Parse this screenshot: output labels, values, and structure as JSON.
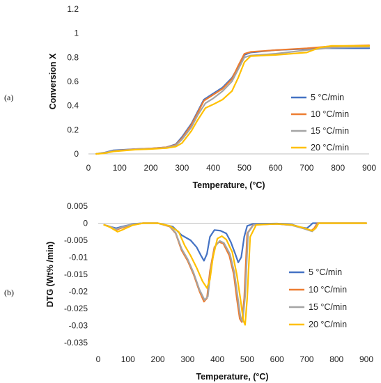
{
  "figure": {
    "panel_labels": [
      "(a)",
      "(b)"
    ]
  },
  "chart_data": [
    {
      "type": "line",
      "panel": "(a)",
      "xlabel": "Temperature, (°C)",
      "ylabel": "Conversion X",
      "xlim": [
        0,
        900
      ],
      "ylim": [
        0,
        1.2
      ],
      "x_ticks": [
        "0",
        "100",
        "200",
        "300",
        "400",
        "500",
        "600",
        "700",
        "800",
        "900"
      ],
      "y_ticks": [
        "0",
        "0.2",
        "0.4",
        "0.6",
        "0.8",
        "1",
        "1.2"
      ],
      "grid": false,
      "legend_position": "right",
      "series": [
        {
          "name": "5 °C/min",
          "color": "#4472c4",
          "points": [
            [
              25,
              0
            ],
            [
              50,
              0.01
            ],
            [
              80,
              0.03
            ],
            [
              150,
              0.04
            ],
            [
              200,
              0.045
            ],
            [
              250,
              0.055
            ],
            [
              280,
              0.08
            ],
            [
              300,
              0.14
            ],
            [
              330,
              0.25
            ],
            [
              350,
              0.35
            ],
            [
              370,
              0.45
            ],
            [
              400,
              0.5
            ],
            [
              430,
              0.55
            ],
            [
              460,
              0.63
            ],
            [
              480,
              0.72
            ],
            [
              500,
              0.82
            ],
            [
              520,
              0.84
            ],
            [
              600,
              0.86
            ],
            [
              700,
              0.87
            ],
            [
              760,
              0.875
            ],
            [
              900,
              0.875
            ]
          ]
        },
        {
          "name": "10 °C/min",
          "color": "#ed7d31",
          "points": [
            [
              25,
              0
            ],
            [
              50,
              0.008
            ],
            [
              80,
              0.025
            ],
            [
              150,
              0.04
            ],
            [
              200,
              0.045
            ],
            [
              250,
              0.055
            ],
            [
              280,
              0.075
            ],
            [
              300,
              0.13
            ],
            [
              330,
              0.24
            ],
            [
              350,
              0.34
            ],
            [
              370,
              0.44
            ],
            [
              400,
              0.49
            ],
            [
              430,
              0.54
            ],
            [
              460,
              0.62
            ],
            [
              480,
              0.73
            ],
            [
              500,
              0.83
            ],
            [
              520,
              0.845
            ],
            [
              600,
              0.86
            ],
            [
              700,
              0.875
            ],
            [
              770,
              0.89
            ],
            [
              900,
              0.9
            ]
          ]
        },
        {
          "name": "15 °C/min",
          "color": "#a5a5a5",
          "points": [
            [
              25,
              0
            ],
            [
              50,
              0.008
            ],
            [
              80,
              0.024
            ],
            [
              150,
              0.038
            ],
            [
              200,
              0.042
            ],
            [
              250,
              0.052
            ],
            [
              280,
              0.07
            ],
            [
              300,
              0.12
            ],
            [
              330,
              0.22
            ],
            [
              350,
              0.32
            ],
            [
              375,
              0.42
            ],
            [
              400,
              0.46
            ],
            [
              430,
              0.52
            ],
            [
              460,
              0.6
            ],
            [
              480,
              0.7
            ],
            [
              500,
              0.8
            ],
            [
              520,
              0.815
            ],
            [
              600,
              0.83
            ],
            [
              700,
              0.86
            ],
            [
              780,
              0.88
            ],
            [
              900,
              0.885
            ]
          ]
        },
        {
          "name": "20 °C/min",
          "color": "#ffc000",
          "points": [
            [
              25,
              0
            ],
            [
              50,
              0.005
            ],
            [
              80,
              0.02
            ],
            [
              150,
              0.035
            ],
            [
              200,
              0.04
            ],
            [
              250,
              0.048
            ],
            [
              280,
              0.06
            ],
            [
              300,
              0.09
            ],
            [
              330,
              0.19
            ],
            [
              350,
              0.28
            ],
            [
              375,
              0.38
            ],
            [
              400,
              0.41
            ],
            [
              430,
              0.45
            ],
            [
              460,
              0.52
            ],
            [
              480,
              0.63
            ],
            [
              500,
              0.76
            ],
            [
              520,
              0.81
            ],
            [
              600,
              0.82
            ],
            [
              700,
              0.84
            ],
            [
              740,
              0.88
            ],
            [
              780,
              0.895
            ],
            [
              900,
              0.895
            ]
          ]
        }
      ]
    },
    {
      "type": "line",
      "panel": "(b)",
      "xlabel": "Temperature, (°C)",
      "ylabel": "DTG (Wt% /min)",
      "xlim": [
        0,
        900
      ],
      "ylim": [
        -0.035,
        0.005
      ],
      "x_ticks": [
        "0",
        "100",
        "200",
        "300",
        "400",
        "500",
        "600",
        "700",
        "800",
        "900"
      ],
      "y_ticks": [
        "0.005",
        "0",
        "-0.005",
        "-0.01",
        "-0.015",
        "-0.02",
        "-0.025",
        "-0.03",
        "-0.035"
      ],
      "grid": false,
      "legend_position": "right",
      "series": [
        {
          "name": "5 °C/min",
          "color": "#4472c4",
          "points": [
            [
              20,
              -0.0005
            ],
            [
              40,
              -0.001
            ],
            [
              60,
              -0.0015
            ],
            [
              80,
              -0.001
            ],
            [
              120,
              -0.0002
            ],
            [
              150,
              0
            ],
            [
              200,
              0
            ],
            [
              250,
              -0.001
            ],
            [
              280,
              -0.0035
            ],
            [
              310,
              -0.005
            ],
            [
              330,
              -0.007
            ],
            [
              345,
              -0.0095
            ],
            [
              355,
              -0.011
            ],
            [
              365,
              -0.009
            ],
            [
              375,
              -0.004
            ],
            [
              390,
              -0.002
            ],
            [
              410,
              -0.0022
            ],
            [
              430,
              -0.003
            ],
            [
              445,
              -0.0055
            ],
            [
              460,
              -0.009
            ],
            [
              470,
              -0.0115
            ],
            [
              480,
              -0.01
            ],
            [
              490,
              -0.004
            ],
            [
              500,
              -0.0008
            ],
            [
              520,
              -0.0002
            ],
            [
              600,
              -0.0001
            ],
            [
              650,
              -0.0004
            ],
            [
              680,
              -0.0012
            ],
            [
              700,
              -0.0015
            ],
            [
              710,
              -0.0008
            ],
            [
              720,
              0
            ],
            [
              900,
              0
            ]
          ]
        },
        {
          "name": "10 °C/min",
          "color": "#ed7d31",
          "points": [
            [
              20,
              -0.0005
            ],
            [
              40,
              -0.001
            ],
            [
              60,
              -0.002
            ],
            [
              75,
              -0.0015
            ],
            [
              110,
              -0.0005
            ],
            [
              150,
              0
            ],
            [
              200,
              0
            ],
            [
              240,
              -0.001
            ],
            [
              260,
              -0.003
            ],
            [
              280,
              -0.008
            ],
            [
              300,
              -0.011
            ],
            [
              320,
              -0.015
            ],
            [
              340,
              -0.02
            ],
            [
              355,
              -0.023
            ],
            [
              365,
              -0.022
            ],
            [
              375,
              -0.014
            ],
            [
              390,
              -0.007
            ],
            [
              405,
              -0.0055
            ],
            [
              420,
              -0.006
            ],
            [
              440,
              -0.0095
            ],
            [
              455,
              -0.015
            ],
            [
              465,
              -0.022
            ],
            [
              475,
              -0.028
            ],
            [
              482,
              -0.029
            ],
            [
              490,
              -0.022
            ],
            [
              500,
              -0.003
            ],
            [
              520,
              -0.0005
            ],
            [
              600,
              -0.0002
            ],
            [
              650,
              -0.0006
            ],
            [
              690,
              -0.0015
            ],
            [
              715,
              -0.0022
            ],
            [
              725,
              -0.0015
            ],
            [
              735,
              0
            ],
            [
              900,
              0
            ]
          ]
        },
        {
          "name": "15 °C/min",
          "color": "#a5a5a5",
          "points": [
            [
              20,
              -0.0005
            ],
            [
              40,
              -0.001
            ],
            [
              60,
              -0.0018
            ],
            [
              75,
              -0.0013
            ],
            [
              110,
              -0.0004
            ],
            [
              150,
              0
            ],
            [
              200,
              0
            ],
            [
              240,
              -0.0009
            ],
            [
              260,
              -0.0028
            ],
            [
              280,
              -0.0075
            ],
            [
              300,
              -0.0105
            ],
            [
              320,
              -0.0145
            ],
            [
              340,
              -0.0195
            ],
            [
              357,
              -0.0225
            ],
            [
              368,
              -0.0215
            ],
            [
              378,
              -0.0135
            ],
            [
              392,
              -0.0068
            ],
            [
              408,
              -0.0052
            ],
            [
              422,
              -0.0058
            ],
            [
              442,
              -0.009
            ],
            [
              457,
              -0.0145
            ],
            [
              468,
              -0.0215
            ],
            [
              478,
              -0.0278
            ],
            [
              485,
              -0.0288
            ],
            [
              493,
              -0.0215
            ],
            [
              503,
              -0.0028
            ],
            [
              522,
              -0.0004
            ],
            [
              600,
              -0.0002
            ],
            [
              650,
              -0.0006
            ],
            [
              690,
              -0.0016
            ],
            [
              718,
              -0.0024
            ],
            [
              728,
              -0.0016
            ],
            [
              738,
              0
            ],
            [
              900,
              0
            ]
          ]
        },
        {
          "name": "20 °C/min",
          "color": "#ffc000",
          "points": [
            [
              20,
              -0.0005
            ],
            [
              40,
              -0.0012
            ],
            [
              65,
              -0.0025
            ],
            [
              80,
              -0.002
            ],
            [
              115,
              -0.0006
            ],
            [
              150,
              0
            ],
            [
              200,
              0
            ],
            [
              240,
              -0.0008
            ],
            [
              270,
              -0.0025
            ],
            [
              290,
              -0.0065
            ],
            [
              310,
              -0.0095
            ],
            [
              330,
              -0.013
            ],
            [
              350,
              -0.017
            ],
            [
              365,
              -0.019
            ],
            [
              375,
              -0.0165
            ],
            [
              385,
              -0.01
            ],
            [
              400,
              -0.0045
            ],
            [
              415,
              -0.0038
            ],
            [
              430,
              -0.0048
            ],
            [
              450,
              -0.0085
            ],
            [
              465,
              -0.015
            ],
            [
              477,
              -0.022
            ],
            [
              487,
              -0.0285
            ],
            [
              493,
              -0.0298
            ],
            [
              500,
              -0.022
            ],
            [
              510,
              -0.004
            ],
            [
              530,
              -0.0005
            ],
            [
              600,
              -0.0002
            ],
            [
              650,
              -0.0005
            ],
            [
              690,
              -0.0014
            ],
            [
              718,
              -0.0022
            ],
            [
              730,
              -0.0015
            ],
            [
              740,
              0
            ],
            [
              900,
              0
            ]
          ]
        }
      ]
    }
  ]
}
